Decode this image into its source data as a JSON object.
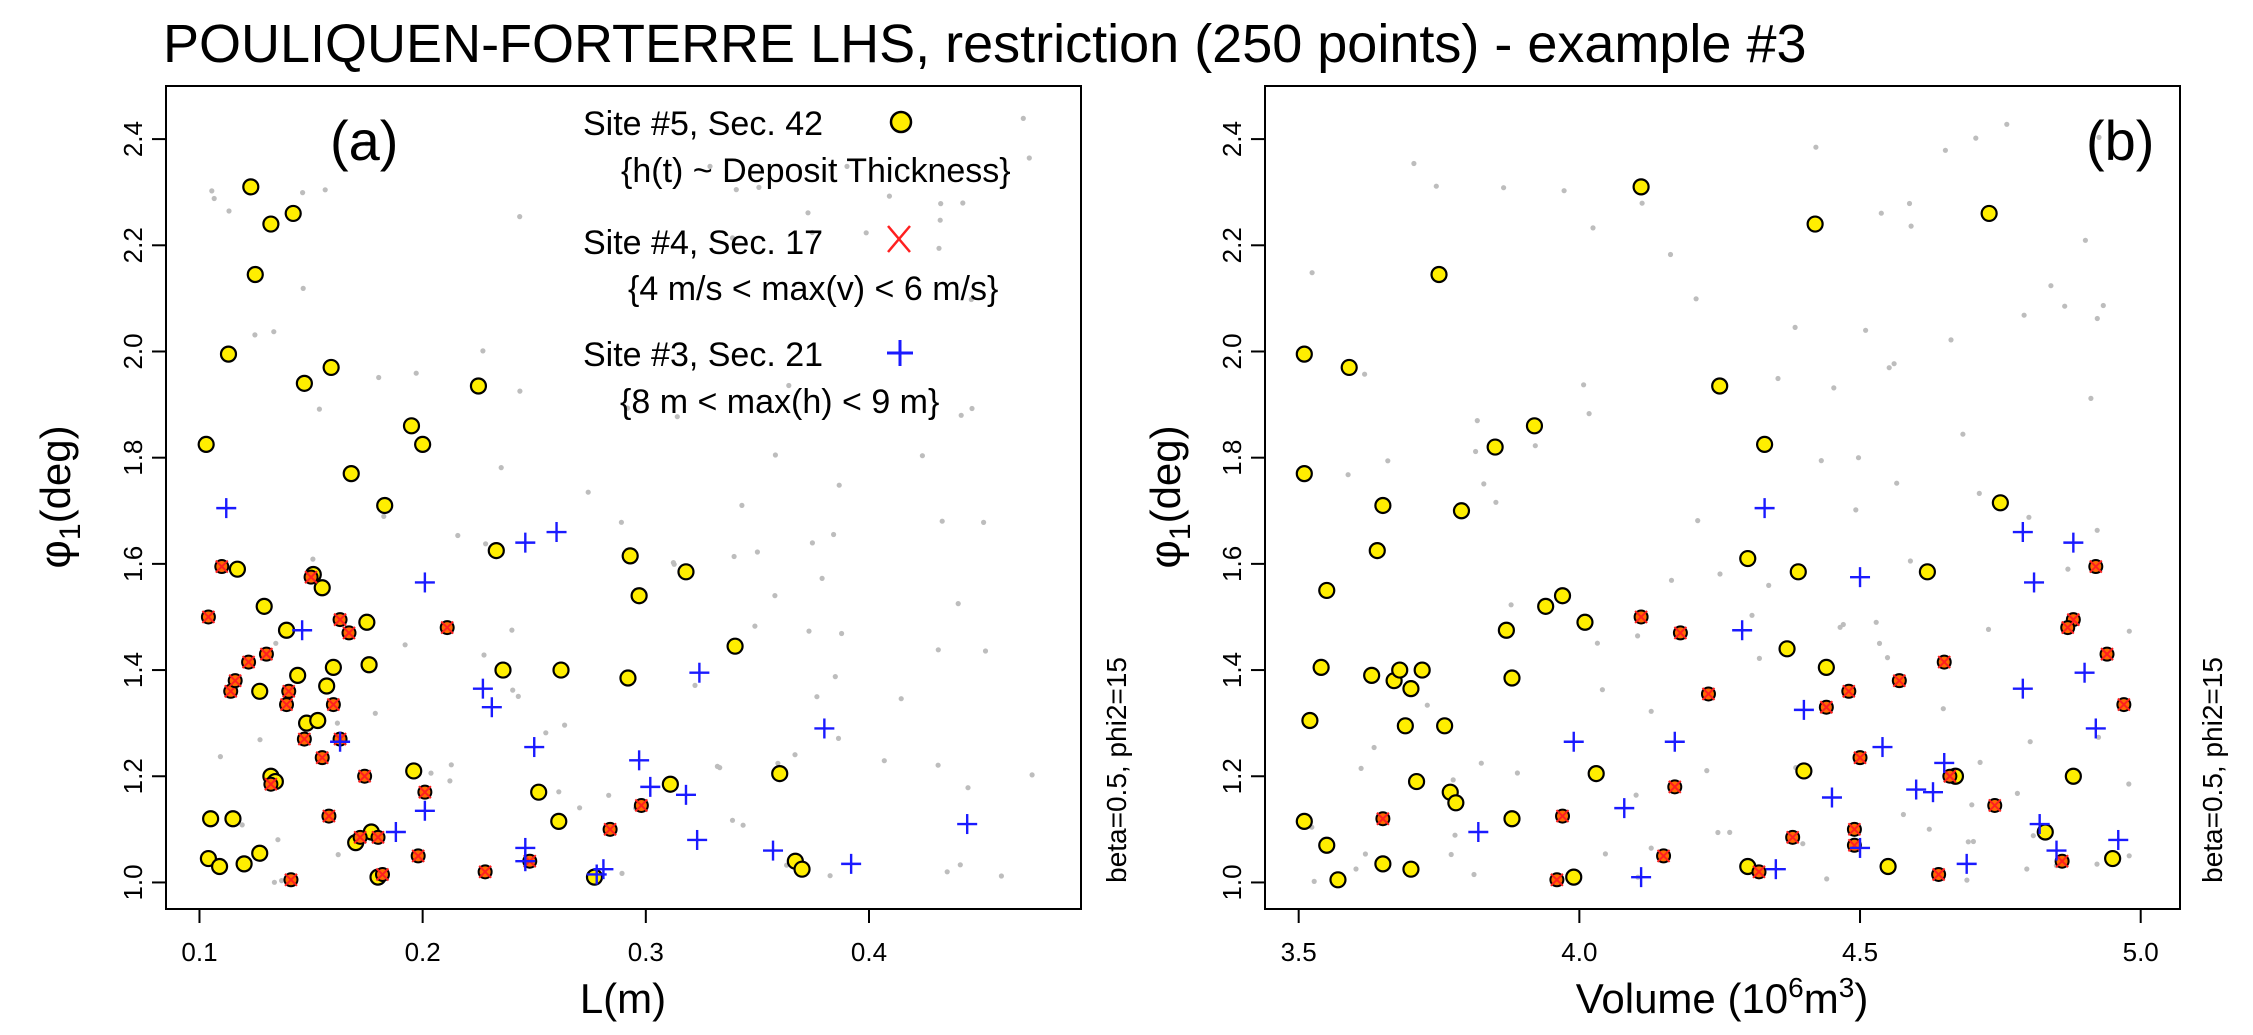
{
  "figure": {
    "title": "POULIQUEN-FORTERRE LHS, restriction (250 points) - example #3",
    "side_note": "beta=0.5, phi2=15"
  },
  "legend": {
    "site5_label": "Site #5, Sec. 42",
    "site5_condition": "{h(t) ~ Deposit Thickness}",
    "site4_label": "Site #4, Sec. 17",
    "site4_condition": "{4 m/s < max(v) < 6 m/s}",
    "site3_label": "Site #3, Sec. 21",
    "site3_condition": "{8 m < max(h) < 9 m}"
  },
  "colors": {
    "background_points": "#bdbdbd",
    "site5_fill": "#ffee00",
    "site4_marker": "#ff2020",
    "site4_fill": "#ff6a00",
    "site3_marker": "#1a1aff",
    "axes": "#000000"
  },
  "chart_data": [
    {
      "type": "scatter",
      "panel_label": "(a)",
      "xlabel": "L(m)",
      "ylabel_symbol": "φ",
      "ylabel_subscript": "1",
      "ylabel_unit": "(deg)",
      "xlim": [
        0.085,
        0.495
      ],
      "ylim": [
        0.95,
        2.5
      ],
      "xticks": [
        0.1,
        0.2,
        0.3,
        0.4
      ],
      "xtick_labels": [
        "0.1",
        "0.2",
        "0.3",
        "0.4"
      ],
      "yticks": [
        1.0,
        1.2,
        1.4,
        1.6,
        1.8,
        2.0,
        2.2,
        2.4
      ],
      "ytick_labels": [
        "1.0",
        "1.2",
        "1.4",
        "1.6",
        "1.8",
        "2.0",
        "2.2",
        "2.4"
      ],
      "grid": false,
      "legend_position": "top-right",
      "series": [
        {
          "name": "Site #5, Sec. 42",
          "marker": "yellow-circle",
          "points": [
            [
              0.103,
              1.825
            ],
            [
              0.104,
              1.045
            ],
            [
              0.105,
              1.12
            ],
            [
              0.109,
              1.03
            ],
            [
              0.113,
              1.995
            ],
            [
              0.117,
              1.59
            ],
            [
              0.12,
              1.035
            ],
            [
              0.123,
              2.31
            ],
            [
              0.125,
              2.145
            ],
            [
              0.127,
              1.055
            ],
            [
              0.129,
              1.52
            ],
            [
              0.132,
              2.24
            ],
            [
              0.132,
              1.2
            ],
            [
              0.134,
              1.19
            ],
            [
              0.139,
              1.475
            ],
            [
              0.142,
              2.26
            ],
            [
              0.144,
              1.39
            ],
            [
              0.147,
              1.94
            ],
            [
              0.148,
              1.3
            ],
            [
              0.151,
              1.58
            ],
            [
              0.153,
              1.305
            ],
            [
              0.155,
              1.555
            ],
            [
              0.157,
              1.37
            ],
            [
              0.159,
              1.97
            ],
            [
              0.16,
              1.405
            ],
            [
              0.168,
              1.77
            ],
            [
              0.17,
              1.075
            ],
            [
              0.175,
              1.49
            ],
            [
              0.176,
              1.41
            ],
            [
              0.177,
              1.095
            ],
            [
              0.18,
              1.01
            ],
            [
              0.183,
              1.71
            ],
            [
              0.195,
              1.86
            ],
            [
              0.196,
              1.21
            ],
            [
              0.2,
              1.825
            ],
            [
              0.225,
              1.935
            ],
            [
              0.233,
              1.625
            ],
            [
              0.236,
              1.4
            ],
            [
              0.252,
              1.17
            ],
            [
              0.261,
              1.115
            ],
            [
              0.262,
              1.4
            ],
            [
              0.277,
              1.01
            ],
            [
              0.293,
              1.615
            ],
            [
              0.292,
              1.385
            ],
            [
              0.297,
              1.54
            ],
            [
              0.311,
              1.185
            ],
            [
              0.318,
              1.585
            ],
            [
              0.34,
              1.445
            ],
            [
              0.36,
              1.205
            ],
            [
              0.367,
              1.04
            ],
            [
              0.37,
              1.025
            ],
            [
              0.115,
              1.12
            ],
            [
              0.127,
              1.36
            ]
          ]
        },
        {
          "name": "Site #4, Sec. 17",
          "marker": "red-x",
          "points": [
            [
              0.104,
              1.5
            ],
            [
              0.11,
              1.595
            ],
            [
              0.114,
              1.36
            ],
            [
              0.116,
              1.38
            ],
            [
              0.122,
              1.415
            ],
            [
              0.13,
              1.43
            ],
            [
              0.132,
              1.185
            ],
            [
              0.139,
              1.335
            ],
            [
              0.14,
              1.36
            ],
            [
              0.141,
              1.005
            ],
            [
              0.147,
              1.27
            ],
            [
              0.15,
              1.575
            ],
            [
              0.155,
              1.235
            ],
            [
              0.158,
              1.125
            ],
            [
              0.16,
              1.335
            ],
            [
              0.163,
              1.495
            ],
            [
              0.163,
              1.27
            ],
            [
              0.167,
              1.47
            ],
            [
              0.172,
              1.085
            ],
            [
              0.174,
              1.2
            ],
            [
              0.18,
              1.085
            ],
            [
              0.182,
              1.015
            ],
            [
              0.198,
              1.05
            ],
            [
              0.201,
              1.17
            ],
            [
              0.211,
              1.48
            ],
            [
              0.228,
              1.02
            ],
            [
              0.248,
              1.04
            ],
            [
              0.284,
              1.1
            ],
            [
              0.298,
              1.145
            ]
          ]
        },
        {
          "name": "Site #3, Sec. 21",
          "marker": "blue-plus",
          "points": [
            [
              0.112,
              1.705
            ],
            [
              0.146,
              1.475
            ],
            [
              0.163,
              1.265
            ],
            [
              0.188,
              1.095
            ],
            [
              0.201,
              1.135
            ],
            [
              0.201,
              1.565
            ],
            [
              0.227,
              1.365
            ],
            [
              0.231,
              1.33
            ],
            [
              0.246,
              1.065
            ],
            [
              0.246,
              1.64
            ],
            [
              0.25,
              1.255
            ],
            [
              0.26,
              1.66
            ],
            [
              0.278,
              1.015
            ],
            [
              0.281,
              1.025
            ],
            [
              0.297,
              1.23
            ],
            [
              0.302,
              1.18
            ],
            [
              0.318,
              1.165
            ],
            [
              0.323,
              1.08
            ],
            [
              0.324,
              1.395
            ],
            [
              0.357,
              1.06
            ],
            [
              0.38,
              1.29
            ],
            [
              0.392,
              1.035
            ],
            [
              0.444,
              1.11
            ],
            [
              0.246,
              1.04
            ]
          ]
        }
      ]
    },
    {
      "type": "scatter",
      "panel_label": "(b)",
      "xlabel_prefix": "Volume (10",
      "xlabel_exp1": "6",
      "xlabel_mid": "m",
      "xlabel_exp2": "3",
      "xlabel_suffix": ")",
      "ylabel_symbol": "φ",
      "ylabel_subscript": "1",
      "ylabel_unit": "(deg)",
      "xlim": [
        3.44,
        5.07
      ],
      "ylim": [
        0.95,
        2.5
      ],
      "xticks": [
        3.5,
        4.0,
        4.5,
        5.0
      ],
      "xtick_labels": [
        "3.5",
        "4.0",
        "4.5",
        "5.0"
      ],
      "yticks": [
        1.0,
        1.2,
        1.4,
        1.6,
        1.8,
        2.0,
        2.2,
        2.4
      ],
      "ytick_labels": [
        "1.0",
        "1.2",
        "1.4",
        "1.6",
        "1.8",
        "2.0",
        "2.2",
        "2.4"
      ],
      "grid": false,
      "series": [
        {
          "name": "Site #5, Sec. 42",
          "marker": "yellow-circle",
          "points": [
            [
              3.51,
              1.77
            ],
            [
              3.51,
              1.995
            ],
            [
              3.51,
              1.115
            ],
            [
              3.52,
              1.305
            ],
            [
              3.54,
              1.405
            ],
            [
              3.55,
              1.55
            ],
            [
              3.55,
              1.07
            ],
            [
              3.57,
              1.005
            ],
            [
              3.59,
              1.97
            ],
            [
              3.63,
              1.39
            ],
            [
              3.64,
              1.625
            ],
            [
              3.65,
              1.035
            ],
            [
              3.65,
              1.71
            ],
            [
              3.67,
              1.38
            ],
            [
              3.68,
              1.4
            ],
            [
              3.69,
              1.295
            ],
            [
              3.7,
              1.365
            ],
            [
              3.7,
              1.025
            ],
            [
              3.71,
              1.19
            ],
            [
              3.72,
              1.4
            ],
            [
              3.75,
              2.145
            ],
            [
              3.76,
              1.295
            ],
            [
              3.77,
              1.17
            ],
            [
              3.79,
              1.7
            ],
            [
              3.85,
              1.82
            ],
            [
              3.87,
              1.475
            ],
            [
              3.88,
              1.385
            ],
            [
              3.88,
              1.12
            ],
            [
              3.92,
              1.86
            ],
            [
              3.94,
              1.52
            ],
            [
              3.97,
              1.54
            ],
            [
              3.99,
              1.01
            ],
            [
              4.01,
              1.49
            ],
            [
              4.03,
              1.205
            ],
            [
              4.11,
              2.31
            ],
            [
              4.25,
              1.935
            ],
            [
              4.3,
              1.61
            ],
            [
              4.33,
              1.825
            ],
            [
              4.37,
              1.44
            ],
            [
              4.39,
              1.585
            ],
            [
              4.4,
              1.21
            ],
            [
              4.42,
              2.24
            ],
            [
              4.44,
              1.405
            ],
            [
              4.55,
              1.03
            ],
            [
              4.62,
              1.585
            ],
            [
              4.67,
              1.2
            ],
            [
              4.73,
              2.26
            ],
            [
              4.75,
              1.715
            ],
            [
              4.83,
              1.095
            ],
            [
              4.88,
              1.2
            ],
            [
              4.95,
              1.045
            ],
            [
              4.3,
              1.03
            ],
            [
              3.78,
              1.15
            ]
          ]
        },
        {
          "name": "Site #4, Sec. 17",
          "marker": "red-x",
          "points": [
            [
              3.65,
              1.12
            ],
            [
              3.96,
              1.005
            ],
            [
              3.97,
              1.125
            ],
            [
              4.11,
              1.5
            ],
            [
              4.15,
              1.05
            ],
            [
              4.17,
              1.18
            ],
            [
              4.18,
              1.47
            ],
            [
              4.23,
              1.355
            ],
            [
              4.32,
              1.02
            ],
            [
              4.38,
              1.085
            ],
            [
              4.44,
              1.33
            ],
            [
              4.48,
              1.36
            ],
            [
              4.49,
              1.07
            ],
            [
              4.5,
              1.235
            ],
            [
              4.57,
              1.38
            ],
            [
              4.64,
              1.015
            ],
            [
              4.65,
              1.415
            ],
            [
              4.66,
              1.2
            ],
            [
              4.74,
              1.145
            ],
            [
              4.86,
              1.04
            ],
            [
              4.88,
              1.495
            ],
            [
              4.92,
              1.595
            ],
            [
              4.94,
              1.43
            ],
            [
              4.97,
              1.335
            ],
            [
              4.49,
              1.1
            ],
            [
              4.87,
              1.48
            ]
          ]
        },
        {
          "name": "Site #3, Sec. 21",
          "marker": "blue-plus",
          "points": [
            [
              3.82,
              1.095
            ],
            [
              3.99,
              1.265
            ],
            [
              4.08,
              1.14
            ],
            [
              4.11,
              1.01
            ],
            [
              4.17,
              1.265
            ],
            [
              4.29,
              1.475
            ],
            [
              4.33,
              1.705
            ],
            [
              4.35,
              1.025
            ],
            [
              4.4,
              1.325
            ],
            [
              4.45,
              1.16
            ],
            [
              4.5,
              1.575
            ],
            [
              4.54,
              1.255
            ],
            [
              4.6,
              1.175
            ],
            [
              4.63,
              1.17
            ],
            [
              4.65,
              1.225
            ],
            [
              4.69,
              1.035
            ],
            [
              4.79,
              1.365
            ],
            [
              4.79,
              1.66
            ],
            [
              4.81,
              1.565
            ],
            [
              4.82,
              1.11
            ],
            [
              4.85,
              1.06
            ],
            [
              4.88,
              1.64
            ],
            [
              4.9,
              1.395
            ],
            [
              4.92,
              1.29
            ],
            [
              4.96,
              1.08
            ],
            [
              4.5,
              1.065
            ]
          ]
        }
      ]
    }
  ]
}
